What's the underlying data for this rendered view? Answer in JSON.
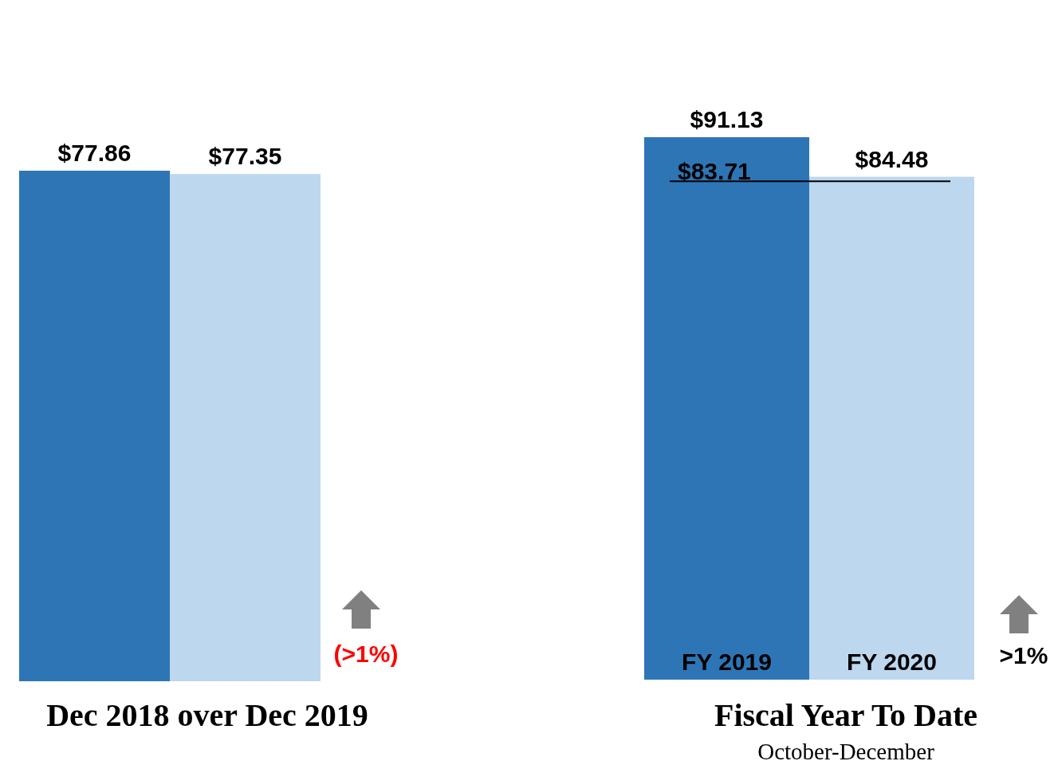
{
  "chart_data": [
    {
      "type": "bar",
      "title": "Dec 2018 over Dec 2019",
      "categories": [
        null,
        null
      ],
      "values": [
        77.86,
        77.35
      ],
      "colors": [
        "#2e75b6",
        "#bdd7ee"
      ],
      "value_labels": [
        "$77.86",
        "$77.35"
      ],
      "annotations": [
        "(>1%)"
      ]
    },
    {
      "type": "bar",
      "title": "Fiscal Year To Date",
      "subtitle": "October-December",
      "categories": [
        "FY 2019",
        "FY 2020"
      ],
      "values": [
        91.13,
        84.48
      ],
      "colors": [
        "#2e75b6",
        "#bdd7ee"
      ],
      "value_labels": [
        "$91.13",
        "$84.48"
      ],
      "ref_lines": [
        {
          "axis": "y",
          "value": 83.71,
          "label": "$83.71",
          "color": "#000000"
        }
      ],
      "annotations": [
        ">1%"
      ]
    }
  ]
}
